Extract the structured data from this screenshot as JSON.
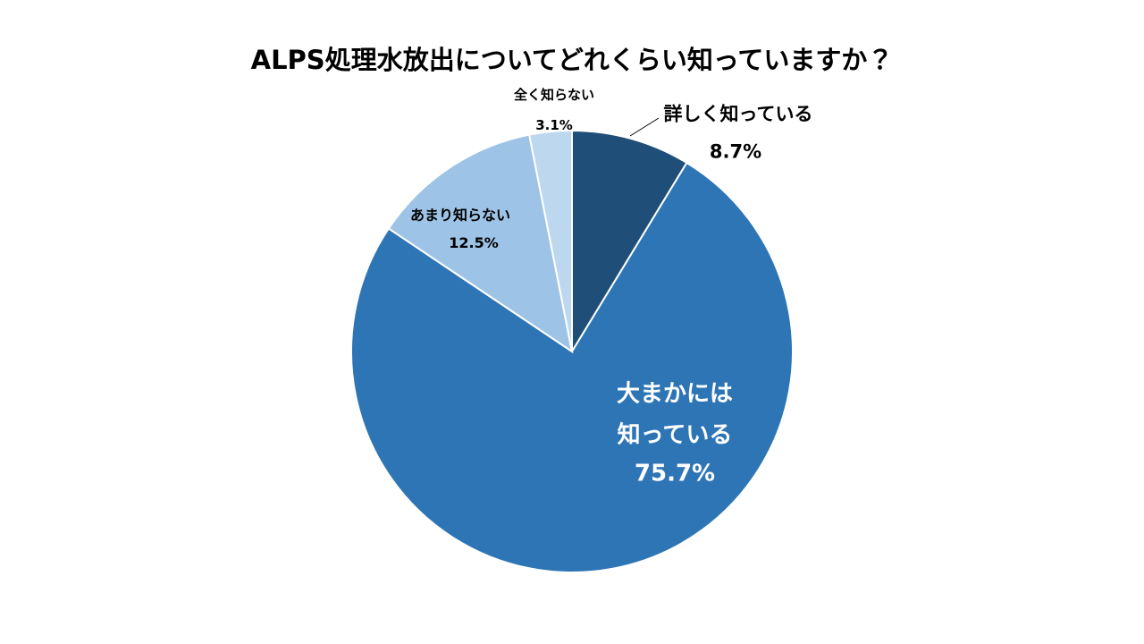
{
  "chart_data": {
    "type": "pie",
    "title": "ALPS処理水放出についてどれくらい知っていますか？",
    "categories": [
      "詳しく知っている",
      "大まかには\n知っている",
      "あまり知らない",
      "全く知らない"
    ],
    "values": [
      8.7,
      75.7,
      12.5,
      3.1
    ],
    "value_labels": [
      "8.7%",
      "75.7%",
      "12.5%",
      "3.1%"
    ],
    "colors": [
      "#1f4e79",
      "#2e75b6",
      "#9dc3e6",
      "#bdd7ee"
    ]
  }
}
